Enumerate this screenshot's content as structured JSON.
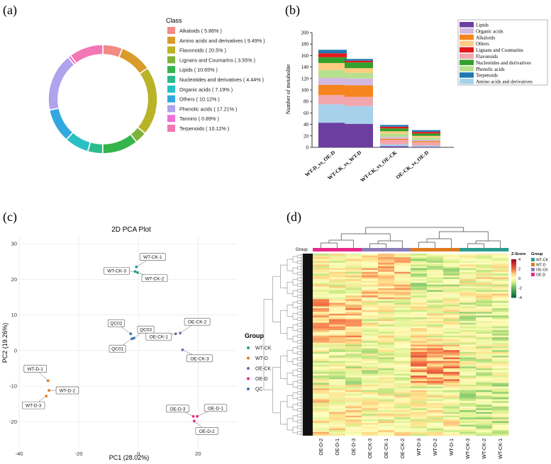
{
  "panels": {
    "a": "(a)",
    "b": "(b)",
    "c": "(c)",
    "d": "(d)"
  },
  "chart_data": [
    {
      "type": "pie",
      "subtype": "donut",
      "legend_title": "Class",
      "slices": [
        {
          "label": "Alkaloids ( 5.86% )",
          "value": 5.86,
          "color": "#f08c84"
        },
        {
          "label": "Amino acids and derivatives ( 9.49% )",
          "value": 9.49,
          "color": "#d99b2b"
        },
        {
          "label": "Flavonoids ( 20.5% )",
          "value": 20.5,
          "color": "#b9b327"
        },
        {
          "label": "Lignans and Coumarins ( 3.55% )",
          "value": 3.55,
          "color": "#7fb23a"
        },
        {
          "label": "Lipids ( 10.65% )",
          "value": 10.65,
          "color": "#34b44a"
        },
        {
          "label": "Nucleotides and derivatives ( 4.44% )",
          "value": 4.44,
          "color": "#2dbb8c"
        },
        {
          "label": "Organic acids ( 7.19% )",
          "value": 7.19,
          "color": "#28c0c4"
        },
        {
          "label": "Others ( 10.12% )",
          "value": 10.12,
          "color": "#33a8e0"
        },
        {
          "label": "Phenolic acids ( 17.21% )",
          "value": 17.21,
          "color": "#b1a2ee"
        },
        {
          "label": "Tannins ( 0.89% )",
          "value": 0.89,
          "color": "#ee70d8"
        },
        {
          "label": "Terpenoids ( 10.12% )",
          "value": 10.12,
          "color": "#f277b4"
        }
      ]
    },
    {
      "type": "bar",
      "subtype": "stacked",
      "ylabel": "Number of metabolite",
      "ylim": [
        0,
        200
      ],
      "yticks": [
        "0",
        "20",
        "40",
        "60",
        "80",
        "100",
        "120",
        "140",
        "160",
        "180",
        "200"
      ],
      "categories": [
        "WT-D_vs_OE-D",
        "WT-CK_vs_WT-D",
        "WT-CK_vs_OE-CK",
        "OE-CK_vs_OE-D"
      ],
      "series": [
        {
          "name": "Lipids",
          "color": "#6b3fa0",
          "values": [
            43,
            41,
            2,
            1
          ]
        },
        {
          "name": "Amino acids and derivatives",
          "color": "#a7d1eb",
          "values": [
            32,
            31,
            3,
            2
          ]
        },
        {
          "name": "Flavonoids",
          "color": "#f2a7ae",
          "values": [
            16,
            16,
            8,
            6
          ]
        },
        {
          "name": "Alkaloids",
          "color": "#f6851f",
          "values": [
            18,
            20,
            2,
            2
          ]
        },
        {
          "name": "Organic acids",
          "color": "#d3b9e0",
          "values": [
            12,
            12,
            3,
            2
          ]
        },
        {
          "name": "Phenolic acids",
          "color": "#b7e08e",
          "values": [
            14,
            10,
            6,
            4
          ]
        },
        {
          "name": "Others",
          "color": "#fdcc81",
          "values": [
            12,
            8,
            4,
            3
          ]
        },
        {
          "name": "Nucleotides and derivatives",
          "color": "#33a02c",
          "values": [
            10,
            10,
            5,
            4
          ]
        },
        {
          "name": "Lignans and Coumarins",
          "color": "#e31a1c",
          "values": [
            7,
            3,
            3,
            3
          ]
        },
        {
          "name": "Terpenoids",
          "color": "#1f78b4",
          "values": [
            6,
            3,
            3,
            3
          ]
        }
      ],
      "legend_order": [
        "Lipids",
        "Organic acids",
        "Alkaloids",
        "Others",
        "Lignans and Coumarins",
        "Flavonoids",
        "Nucleotides and derivatives",
        "Phenolic acids",
        "Terpenoids",
        "Amino acids and derivatives"
      ]
    },
    {
      "type": "scatter",
      "title": "2D PCA Plot",
      "xlabel": "PC1 (28.02%)",
      "ylabel": "PC2 (19.26%)",
      "xlim": [
        -40,
        33
      ],
      "ylim": [
        -27.5,
        32
      ],
      "xticks": [
        -40,
        -20,
        0,
        20
      ],
      "yticks": [
        -20,
        -10,
        0,
        10,
        20,
        30
      ],
      "legend_title": "Group",
      "groups": [
        {
          "name": "WT-CK",
          "color": "#2a9d8f"
        },
        {
          "name": "WT-D",
          "color": "#e07a1f"
        },
        {
          "name": "OE-CK",
          "color": "#7a6aa8"
        },
        {
          "name": "OE-D",
          "color": "#e7298a"
        },
        {
          "name": "QC",
          "color": "#3b74b8"
        }
      ],
      "points": [
        {
          "label": "WT-CK-1",
          "group": "WT-CK",
          "x": -0.7,
          "y": 23.5
        },
        {
          "label": "WT-CK-2",
          "group": "WT-CK",
          "x": -0.3,
          "y": 21.9
        },
        {
          "label": "WT-CK-3",
          "group": "WT-CK",
          "x": -1.1,
          "y": 22.2
        },
        {
          "label": "WT-D-1",
          "group": "WT-D",
          "x": -30.3,
          "y": -8.5
        },
        {
          "label": "WT-D-2",
          "group": "WT-D",
          "x": -30.0,
          "y": -11.2
        },
        {
          "label": "WT-D-3",
          "group": "WT-D",
          "x": -30.9,
          "y": -12.8
        },
        {
          "label": "OE-CK-1",
          "group": "OE-CK",
          "x": 12.5,
          "y": 4.7
        },
        {
          "label": "OE-CK-2",
          "group": "OE-CK",
          "x": 14.0,
          "y": 4.9
        },
        {
          "label": "OE-CK-3",
          "group": "OE-CK",
          "x": 14.8,
          "y": 0.2
        },
        {
          "label": "OE-D-1",
          "group": "OE-D",
          "x": 19.7,
          "y": -18.5
        },
        {
          "label": "OE-D-2",
          "group": "OE-D",
          "x": 18.7,
          "y": -19.8
        },
        {
          "label": "OE-D-3",
          "group": "OE-D",
          "x": 18.4,
          "y": -18.5
        },
        {
          "label": "QC01",
          "group": "QC",
          "x": -2.2,
          "y": 3.3
        },
        {
          "label": "QC02",
          "group": "QC",
          "x": -2.6,
          "y": 4.7
        },
        {
          "label": "QC03",
          "group": "QC",
          "x": -1.5,
          "y": 3.5
        }
      ]
    },
    {
      "type": "heatmap",
      "columns": [
        "OE-D-2",
        "OE-D-1",
        "OE-D-3",
        "OE-CK-3",
        "OE-CK-1",
        "OE-CK-2",
        "WT-D-3",
        "WT-D-2",
        "WT-D-1",
        "WT-CK-3",
        "WT-CK-2",
        "WT-CK-1"
      ],
      "column_groups": [
        "OE-D",
        "OE-D",
        "OE-D",
        "OE-CK",
        "OE-CK",
        "OE-CK",
        "WT-D",
        "WT-D",
        "WT-D",
        "WT-CK",
        "WT-CK",
        "WT-CK"
      ],
      "group_label": "Group",
      "colorbar_title": "Z-Score",
      "colorbar_ticks": [
        "4",
        "2",
        "0",
        "-2",
        "-4"
      ],
      "colorbar_range": [
        -4,
        4
      ],
      "legend_title": "Group",
      "legend": [
        {
          "name": "WT-CK",
          "color": "#2a9d8f"
        },
        {
          "name": "WT-D",
          "color": "#e07a1f"
        },
        {
          "name": "OE-CK",
          "color": "#8d7bb7"
        },
        {
          "name": "OE-D",
          "color": "#e7298a"
        }
      ]
    }
  ]
}
